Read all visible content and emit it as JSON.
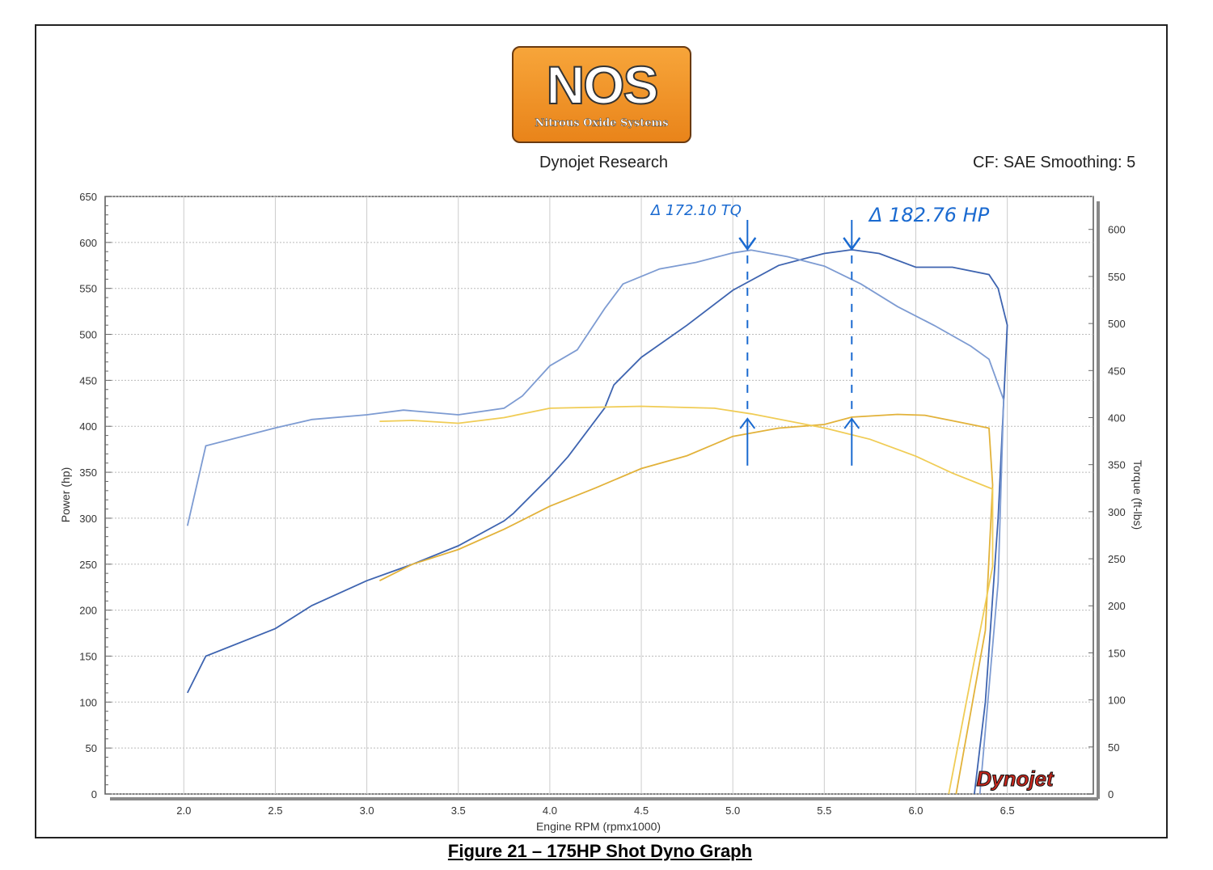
{
  "logo": {
    "text": "NOS",
    "subtitle": "Nitrous Oxide Systems",
    "color": "#f0952a"
  },
  "header": {
    "title": "Dynojet Research",
    "settings": "CF: SAE Smoothing: 5"
  },
  "caption": "Figure 21 – 175HP Shot Dyno Graph",
  "watermark": "Dynojet",
  "chart_data": {
    "type": "line",
    "xlabel": "Engine RPM (rpmx1000)",
    "ylabel": "Power (hp)",
    "y2label": "Torque (ft-lbs)",
    "xlim": [
      1.57,
      6.97
    ],
    "ylim": [
      0,
      650
    ],
    "y2lim": [
      0,
      635
    ],
    "xticks": [
      "2.0",
      "2.5",
      "3.0",
      "3.5",
      "4.0",
      "4.5",
      "5.0",
      "5.5",
      "6.0",
      "6.5"
    ],
    "yticks": [
      "0",
      "50",
      "100",
      "150",
      "200",
      "250",
      "300",
      "350",
      "400",
      "450",
      "500",
      "550",
      "600",
      "650"
    ],
    "y2ticks": [
      "0",
      "50",
      "100",
      "150",
      "200",
      "250",
      "300",
      "350",
      "400",
      "450",
      "500",
      "550",
      "600"
    ],
    "grid": true,
    "series": [
      {
        "axis": "left",
        "color": "#3e64b0",
        "x": [
          2.02,
          2.12,
          2.5,
          2.7,
          3.0,
          3.25,
          3.5,
          3.75,
          3.8,
          4.0,
          4.1,
          4.3,
          4.35,
          4.5,
          4.75,
          5.0,
          5.25,
          5.5,
          5.65,
          5.8,
          6.0,
          6.2,
          6.4,
          6.45,
          6.5,
          6.45,
          6.38,
          6.32
        ],
        "y": [
          110,
          150,
          180,
          205,
          232,
          250,
          270,
          297,
          305,
          345,
          367,
          420,
          445,
          475,
          510,
          548,
          575,
          588,
          592,
          588,
          573,
          573,
          565,
          550,
          510,
          300,
          100,
          0
        ]
      },
      {
        "axis": "right",
        "color": "#7d9bd2",
        "x": [
          2.02,
          2.12,
          2.5,
          2.7,
          3.0,
          3.2,
          3.5,
          3.75,
          3.85,
          4.0,
          4.15,
          4.3,
          4.4,
          4.6,
          4.8,
          5.0,
          5.1,
          5.3,
          5.5,
          5.7,
          5.9,
          6.1,
          6.3,
          6.4,
          6.48,
          6.45,
          6.35
        ],
        "y": [
          285,
          370,
          389,
          398,
          403,
          408,
          403,
          410,
          423,
          455,
          472,
          516,
          542,
          558,
          565,
          575,
          578,
          571,
          561,
          542,
          518,
          498,
          476,
          462,
          419,
          225,
          0
        ]
      },
      {
        "axis": "left",
        "color": "#e2b23a",
        "x": [
          3.07,
          3.25,
          3.5,
          3.75,
          4.0,
          4.25,
          4.5,
          4.75,
          5.0,
          5.25,
          5.5,
          5.65,
          5.9,
          6.05,
          6.2,
          6.4,
          6.42,
          6.38,
          6.22
        ],
        "y": [
          232,
          250,
          266,
          288,
          313,
          333,
          354,
          368,
          389,
          398,
          402,
          410,
          413,
          412,
          406,
          398,
          336,
          178,
          0
        ]
      },
      {
        "axis": "right",
        "color": "#f0cc55",
        "x": [
          3.07,
          3.25,
          3.5,
          3.75,
          4.0,
          4.5,
          4.9,
          5.1,
          5.5,
          5.75,
          6.0,
          6.2,
          6.42,
          6.42,
          6.3,
          6.18
        ],
        "y": [
          396,
          397,
          394,
          400,
          410,
          412,
          410,
          404,
          389,
          377,
          359,
          341,
          324,
          242,
          122,
          0
        ]
      }
    ],
    "annotations": [
      {
        "text": "Δ 172.10 TQ",
        "x": 5.08,
        "from_y": 410,
        "to_y": 595
      },
      {
        "text": "Δ 182.76 HP",
        "x": 5.65,
        "from_y": 410,
        "to_y": 595
      }
    ]
  }
}
